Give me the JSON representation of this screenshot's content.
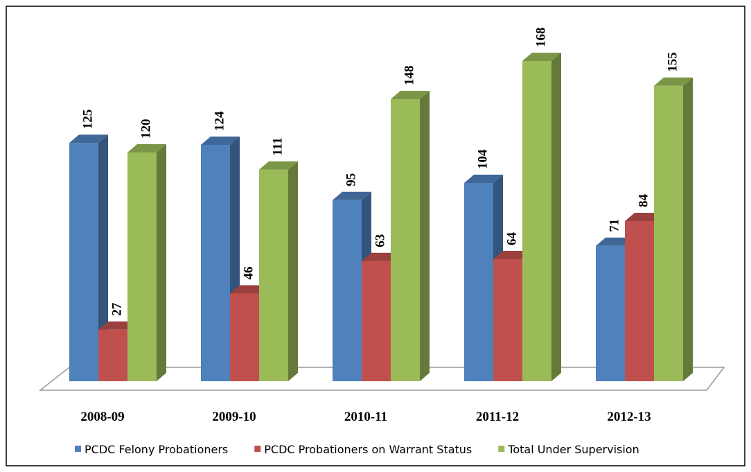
{
  "chart_data": {
    "type": "bar3d",
    "categories": [
      "2008-09",
      "2009-10",
      "2010-11",
      "2011-12",
      "2012-13"
    ],
    "series": [
      {
        "name": "PCDC Felony Probationers",
        "color": "#4f81bd",
        "values": [
          125,
          124,
          95,
          104,
          71
        ]
      },
      {
        "name": "PCDC Probationers on Warrant Status",
        "color": "#c0504d",
        "values": [
          27,
          46,
          63,
          64,
          84
        ]
      },
      {
        "name": "Total Under Supervision",
        "color": "#9bbb59",
        "values": [
          120,
          111,
          148,
          168,
          155
        ]
      }
    ],
    "legend": "bottom"
  }
}
